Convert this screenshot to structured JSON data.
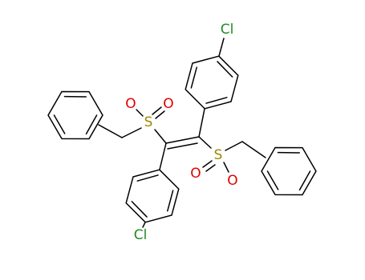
{
  "atoms": [
    "Cl",
    "Cl",
    "S",
    "S",
    "O",
    "O",
    "O",
    "O"
  ]
}
